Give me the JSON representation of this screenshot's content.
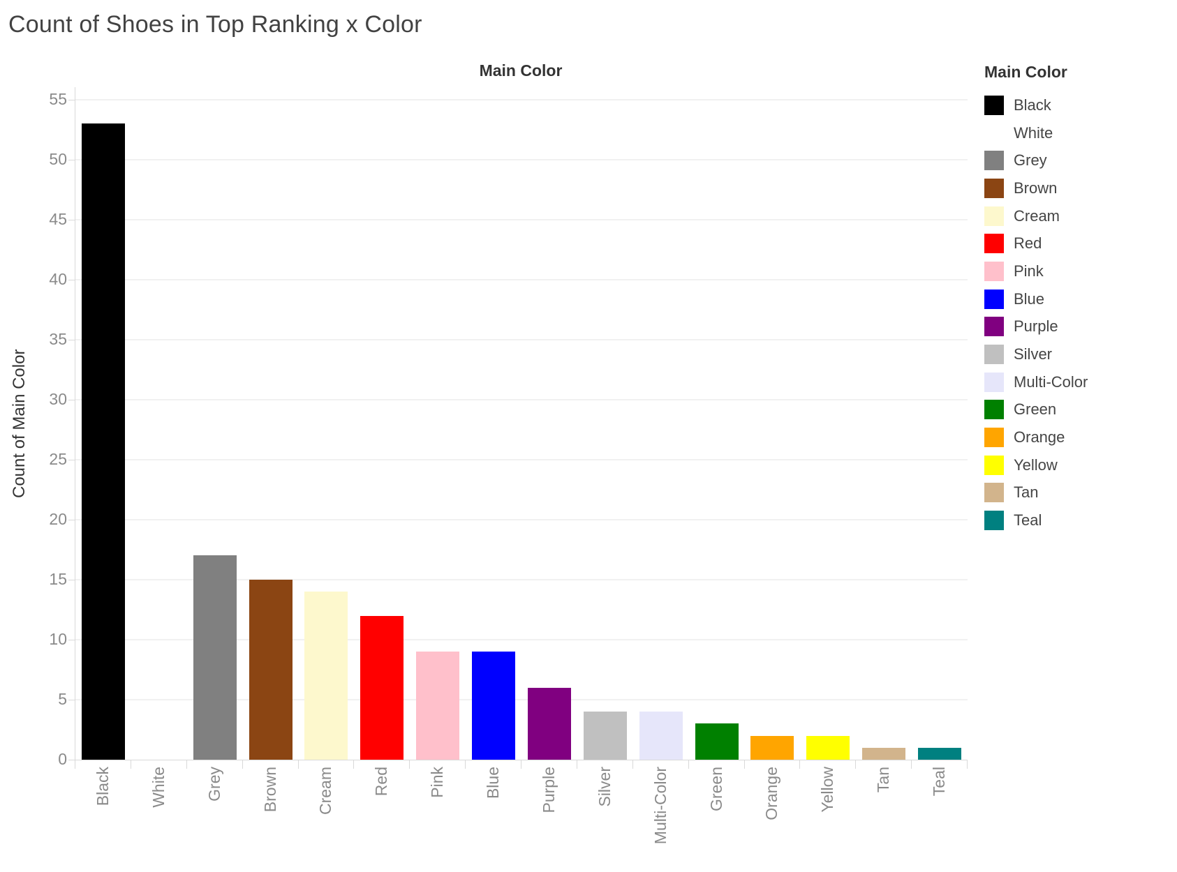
{
  "title": "Count of Shoes in Top Ranking x Color",
  "column_header": "Main Color",
  "y_axis_title": "Count of Main Color",
  "legend": {
    "title": "Main Color"
  },
  "colors": {
    "grid": "#f1f1f1",
    "axis": "#d9d9d9",
    "tick_text": "#8a8a8a",
    "header_text": "#333333",
    "title_text": "#424242"
  },
  "chart_data": {
    "type": "bar",
    "title": "Count of Shoes in Top Ranking x Color",
    "xlabel": "Main Color",
    "ylabel": "Count of Main Color",
    "categories": [
      "Black",
      "White",
      "Grey",
      "Brown",
      "Cream",
      "Red",
      "Pink",
      "Blue",
      "Purple",
      "Silver",
      "Multi-Color",
      "Green",
      "Orange",
      "Yellow",
      "Tan",
      "Teal"
    ],
    "values": [
      53,
      0,
      17,
      15,
      14,
      12,
      9,
      9,
      6,
      4,
      4,
      3,
      2,
      2,
      1,
      1
    ],
    "bar_colors": [
      "#000000",
      "#ffffff",
      "#808080",
      "#8b4513",
      "#fdf8cd",
      "#ff0000",
      "#ffc0cb",
      "#0000ff",
      "#800080",
      "#c0c0c0",
      "#e6e6fa",
      "#008000",
      "#ffa500",
      "#ffff00",
      "#d2b48c",
      "#008080"
    ],
    "ylim": [
      0,
      55
    ],
    "yticks": [
      0,
      5,
      10,
      15,
      20,
      25,
      30,
      35,
      40,
      45,
      50,
      55
    ],
    "grid": true,
    "legend_position": "right",
    "legend_entries": [
      {
        "label": "Black",
        "color": "#000000"
      },
      {
        "label": "White",
        "color": "#ffffff"
      },
      {
        "label": "Grey",
        "color": "#808080"
      },
      {
        "label": "Brown",
        "color": "#8b4513"
      },
      {
        "label": "Cream",
        "color": "#fdf8cd"
      },
      {
        "label": "Red",
        "color": "#ff0000"
      },
      {
        "label": "Pink",
        "color": "#ffc0cb"
      },
      {
        "label": "Blue",
        "color": "#0000ff"
      },
      {
        "label": "Purple",
        "color": "#800080"
      },
      {
        "label": "Silver",
        "color": "#c0c0c0"
      },
      {
        "label": "Multi-Color",
        "color": "#e6e6fa"
      },
      {
        "label": "Green",
        "color": "#008000"
      },
      {
        "label": "Orange",
        "color": "#ffa500"
      },
      {
        "label": "Yellow",
        "color": "#ffff00"
      },
      {
        "label": "Tan",
        "color": "#d2b48c"
      },
      {
        "label": "Teal",
        "color": "#008080"
      }
    ]
  }
}
